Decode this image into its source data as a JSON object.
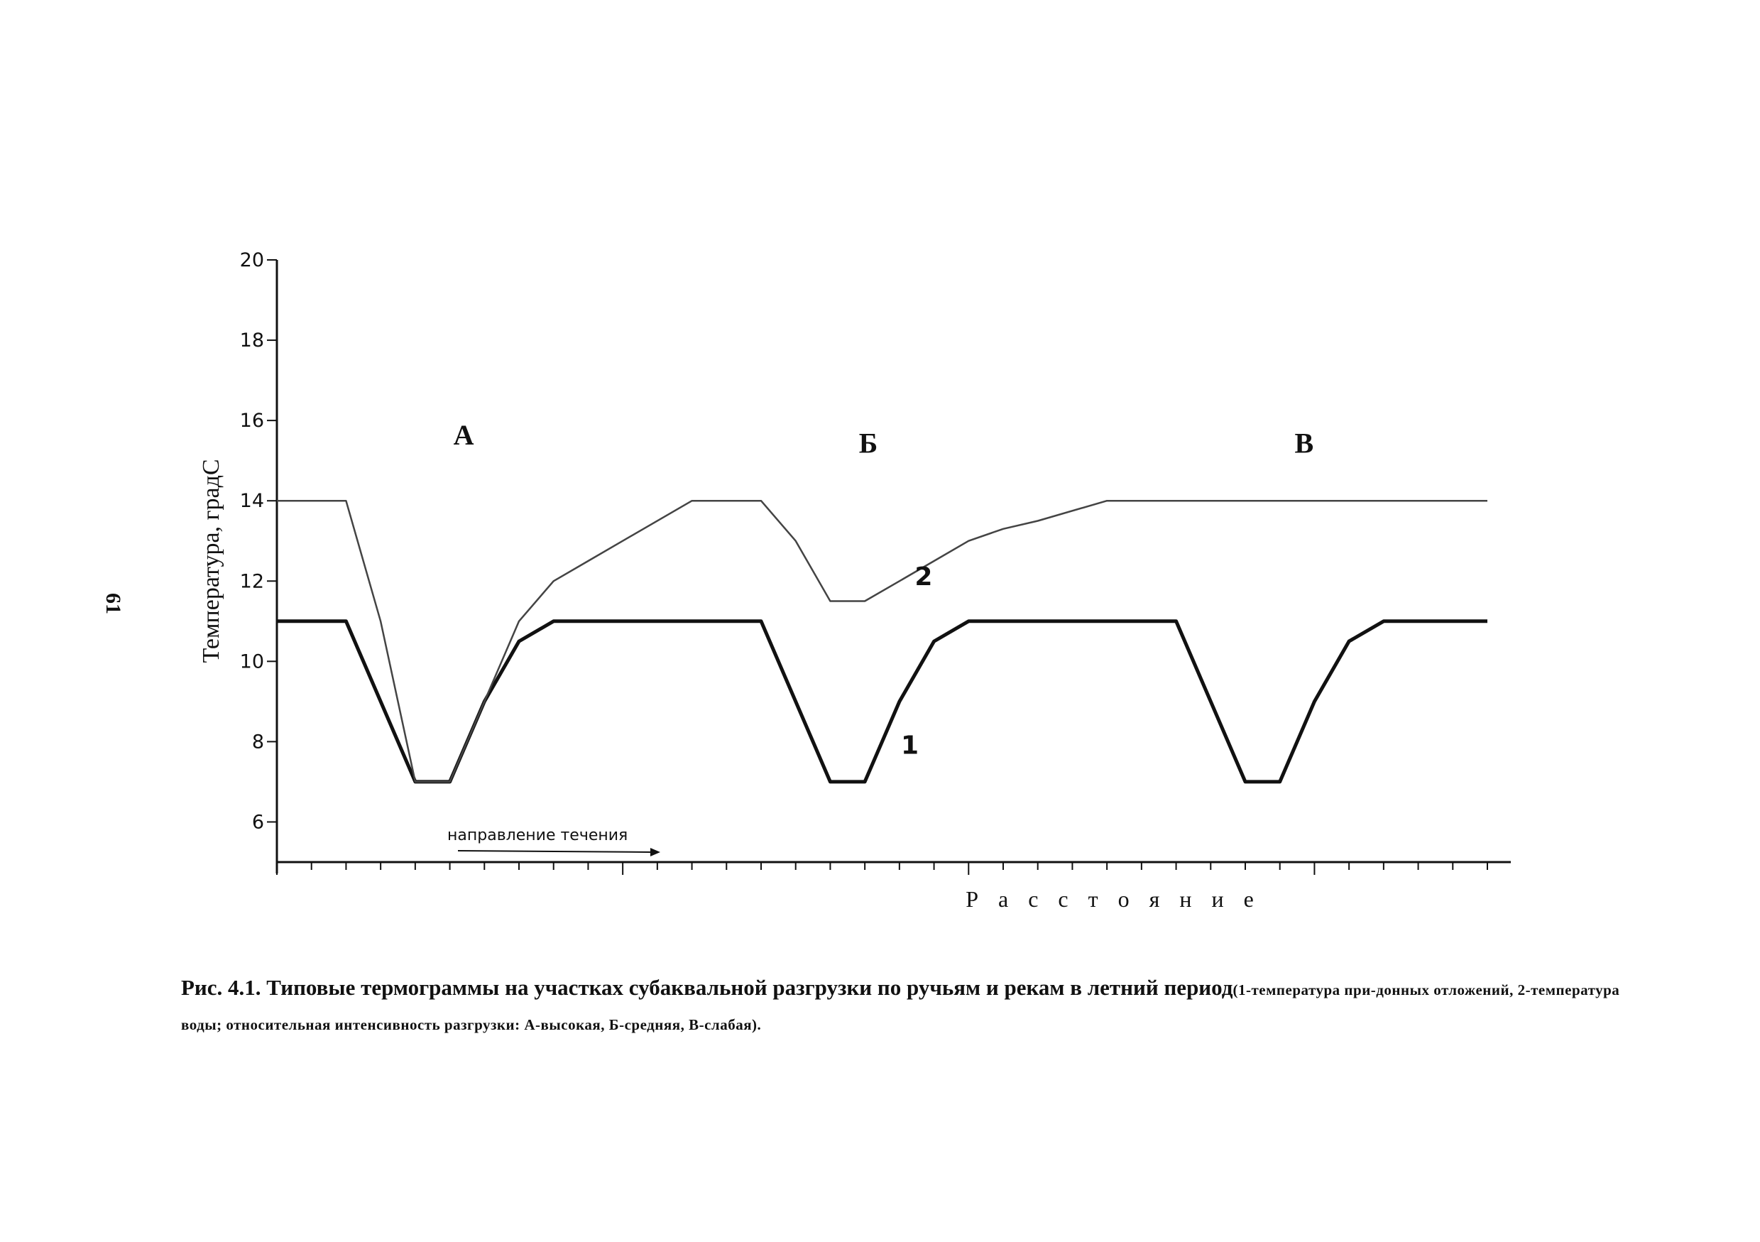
{
  "page_number": "61",
  "caption": {
    "main": "Рис. 4.1. Типовые термограммы на участках субаквальной разгрузки по ручьям и рекам в летний период",
    "note": "(1-температура при-донных отложений, 2-температура воды; относительная интенсивность разгрузки: А-высокая, Б-средняя, В-слабая)."
  },
  "chart_data": {
    "type": "line",
    "title": "",
    "xlabel": "Р а с с т о я н и е",
    "ylabel": "Температура, градС",
    "ylim": [
      5,
      20
    ],
    "xlim": [
      0,
      35
    ],
    "yticks": [
      6,
      8,
      10,
      12,
      14,
      16,
      18,
      20
    ],
    "grid": false,
    "flow_annotation": "направление течения",
    "regions": [
      {
        "label": "А",
        "x": 5.4,
        "y": 15.4
      },
      {
        "label": "Б",
        "x": 17.1,
        "y": 15.2
      },
      {
        "label": "В",
        "x": 29.7,
        "y": 15.2
      }
    ],
    "series": [
      {
        "name": "1",
        "label_at": {
          "x": 18.3,
          "y": 7.7
        },
        "stroke": "#111111",
        "emphasis": "bold",
        "x": [
          0,
          2,
          4,
          5,
          6,
          7,
          8,
          9,
          14,
          16,
          17,
          18,
          19,
          20,
          26,
          28,
          29,
          30,
          31,
          32,
          35
        ],
        "y": [
          11,
          11,
          7,
          7,
          9,
          10.5,
          11,
          11,
          11,
          7,
          7,
          9,
          10.5,
          11,
          11,
          7,
          7,
          9,
          10.5,
          11,
          11
        ]
      },
      {
        "name": "2",
        "label_at": {
          "x": 18.7,
          "y": 11.9
        },
        "stroke": "#444444",
        "emphasis": "thin",
        "x": [
          0,
          2,
          3,
          4,
          5,
          6,
          7,
          8,
          9,
          10,
          12,
          14,
          15,
          16,
          17,
          18,
          19,
          20,
          21,
          22,
          24,
          26,
          35
        ],
        "y": [
          14,
          14,
          11,
          7,
          7,
          9,
          11,
          12,
          12.5,
          13,
          14,
          14,
          13,
          11.5,
          11.5,
          12,
          12.5,
          13,
          13.3,
          13.5,
          14,
          14,
          14
        ]
      }
    ]
  }
}
